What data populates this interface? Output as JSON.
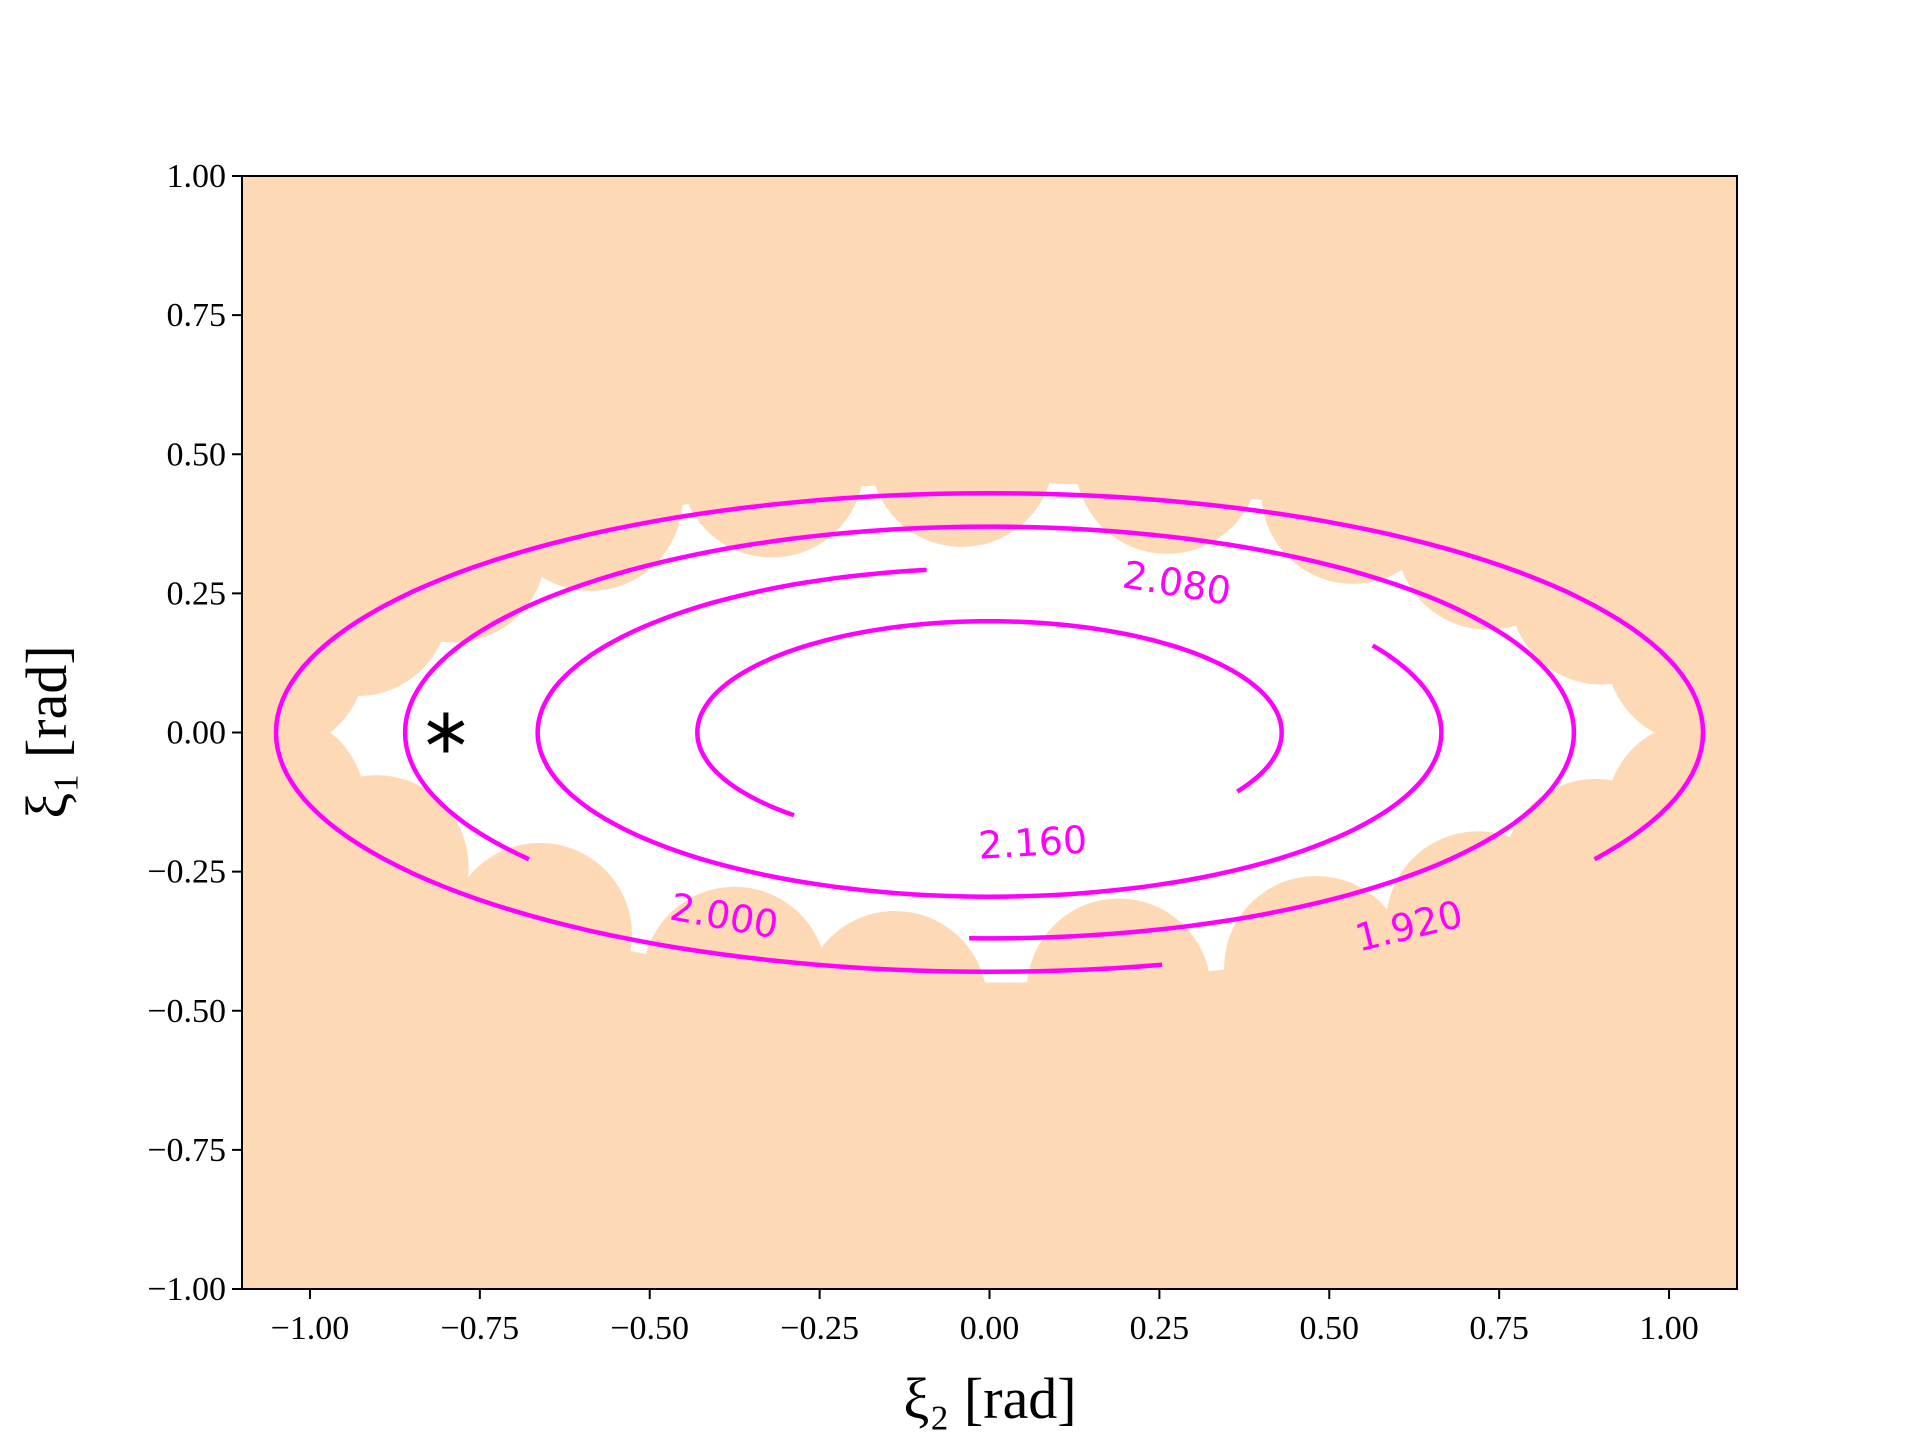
{
  "chart_data": {
    "type": "contour",
    "x_label": "ξ₂ [rad]",
    "y_label": "ξ₁ [rad]",
    "xlim": [
      -1.1,
      1.1
    ],
    "ylim": [
      -1,
      1
    ],
    "xticks": [
      {
        "value": -1,
        "label": "−1.00"
      },
      {
        "value": -0.75,
        "label": "−0.75"
      },
      {
        "value": -0.5,
        "label": "−0.50"
      },
      {
        "value": -0.25,
        "label": "−0.25"
      },
      {
        "value": 0,
        "label": "0.00"
      },
      {
        "value": 0.25,
        "label": "0.25"
      },
      {
        "value": 0.5,
        "label": "0.50"
      },
      {
        "value": 0.75,
        "label": "0.75"
      },
      {
        "value": 1,
        "label": "1.00"
      }
    ],
    "yticks": [
      {
        "value": -1,
        "label": "−1.00"
      },
      {
        "value": -0.75,
        "label": "−0.75"
      },
      {
        "value": -0.5,
        "label": "−0.50"
      },
      {
        "value": -0.25,
        "label": "−0.25"
      },
      {
        "value": 0,
        "label": "0.00"
      },
      {
        "value": 0.25,
        "label": "0.25"
      },
      {
        "value": 0.5,
        "label": "0.50"
      },
      {
        "value": 0.75,
        "label": "0.75"
      },
      {
        "value": 1,
        "label": "1.00"
      }
    ],
    "center": {
      "x": 0,
      "y": 0
    },
    "contours": [
      {
        "level": 1.92,
        "label": "1.920",
        "rx": 1.05,
        "ry": 0.43
      },
      {
        "level": 2.0,
        "label": "2.000",
        "rx": 0.86,
        "ry": 0.37
      },
      {
        "level": 2.08,
        "label": "2.080",
        "rx": 0.665,
        "ry": 0.295
      },
      {
        "level": 2.16,
        "label": "2.160",
        "rx": 0.43,
        "ry": 0.2
      }
    ],
    "contour_color": "#ff00ff",
    "infeasible_color": "#fdd9b5",
    "marker": {
      "x": -0.8,
      "y": 0,
      "color": "#000000"
    }
  }
}
